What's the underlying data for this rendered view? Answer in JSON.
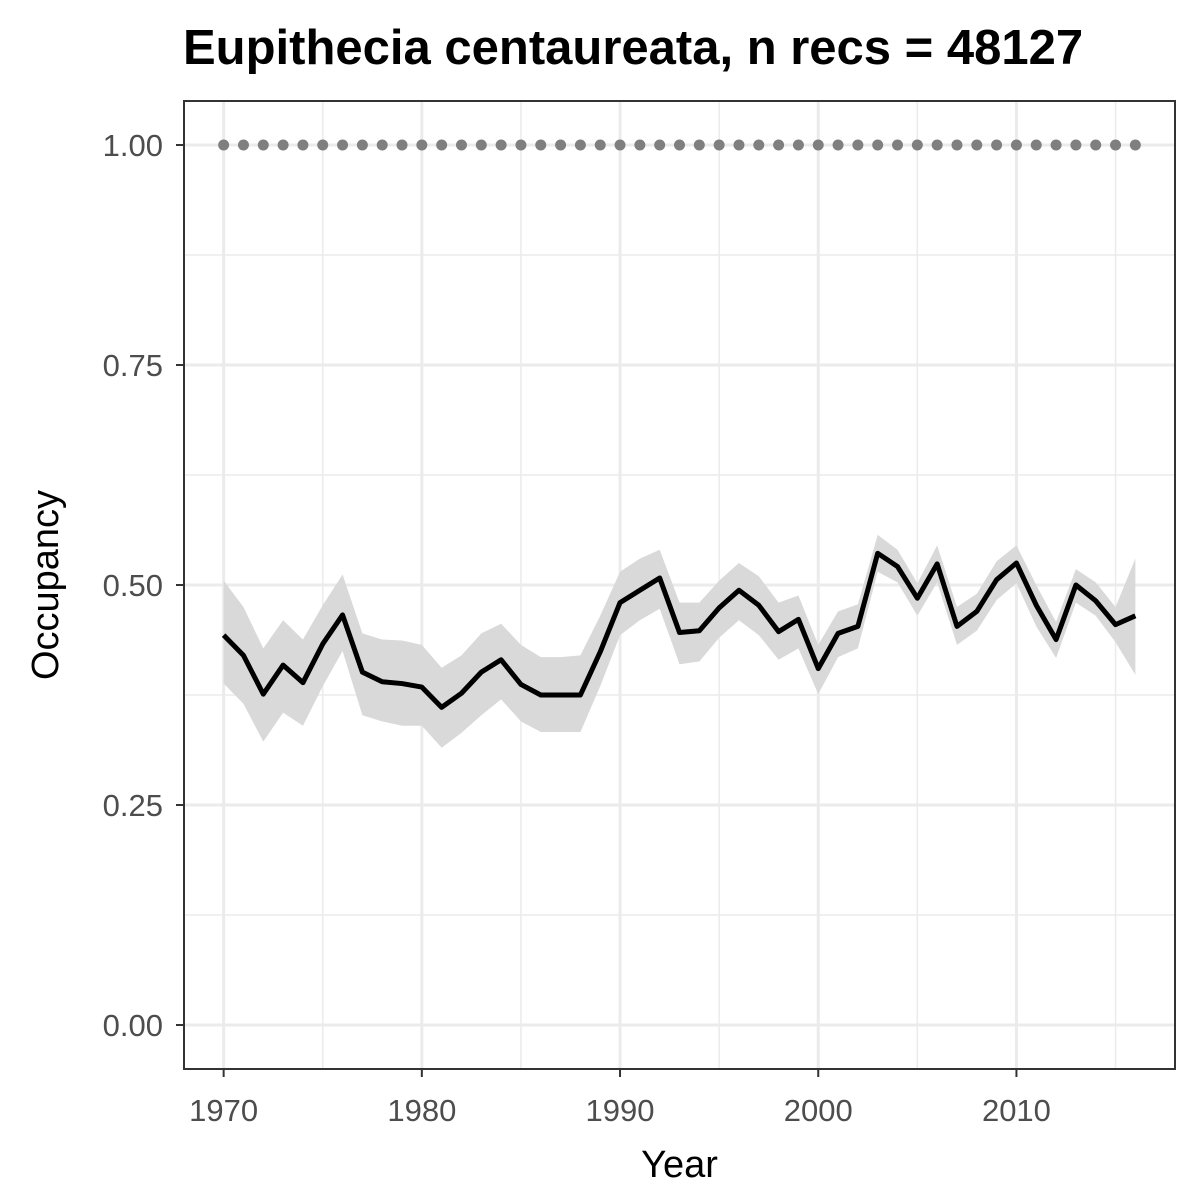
{
  "chart_data": {
    "type": "line",
    "title": "Eupithecia centaureata, n recs = 48127",
    "xlabel": "Year",
    "ylabel": "Occupancy",
    "xlim": [
      1968,
      2018
    ],
    "ylim": [
      -0.05,
      1.05
    ],
    "x_ticks": [
      1970,
      1980,
      1990,
      2000,
      2010
    ],
    "x_tick_labels": [
      "1970",
      "1980",
      "1990",
      "2000",
      "2010"
    ],
    "y_ticks": [
      0,
      0.25,
      0.5,
      0.75,
      1
    ],
    "y_tick_labels": [
      "0.00",
      "0.25",
      "0.50",
      "0.75",
      "1.00"
    ],
    "grid": true,
    "x": [
      1970,
      1971,
      1972,
      1973,
      1974,
      1975,
      1976,
      1977,
      1978,
      1979,
      1980,
      1981,
      1982,
      1983,
      1984,
      1985,
      1986,
      1987,
      1988,
      1989,
      1990,
      1991,
      1992,
      1993,
      1994,
      1995,
      1996,
      1997,
      1998,
      1999,
      2000,
      2001,
      2002,
      2003,
      2004,
      2005,
      2006,
      2007,
      2008,
      2009,
      2010,
      2011,
      2012,
      2013,
      2014,
      2015,
      2016
    ],
    "series": [
      {
        "style": "line",
        "color": "#000000",
        "values": [
          0.443,
          0.42,
          0.376,
          0.409,
          0.389,
          0.433,
          0.466,
          0.401,
          0.39,
          0.388,
          0.384,
          0.361,
          0.377,
          0.401,
          0.415,
          0.387,
          0.375,
          0.375,
          0.375,
          0.424,
          0.48,
          0.494,
          0.508,
          0.446,
          0.448,
          0.474,
          0.494,
          0.477,
          0.447,
          0.461,
          0.405,
          0.445,
          0.453,
          0.536,
          0.521,
          0.485,
          0.524,
          0.453,
          0.47,
          0.506,
          0.525,
          0.477,
          0.438,
          0.5,
          0.482,
          0.455,
          0.465
        ],
        "lower": [
          0.388,
          0.365,
          0.322,
          0.355,
          0.34,
          0.385,
          0.425,
          0.352,
          0.345,
          0.34,
          0.34,
          0.315,
          0.332,
          0.352,
          0.37,
          0.345,
          0.333,
          0.333,
          0.333,
          0.385,
          0.443,
          0.46,
          0.473,
          0.41,
          0.413,
          0.44,
          0.46,
          0.443,
          0.415,
          0.428,
          0.376,
          0.418,
          0.428,
          0.515,
          0.503,
          0.465,
          0.503,
          0.432,
          0.448,
          0.483,
          0.502,
          0.453,
          0.417,
          0.48,
          0.465,
          0.435,
          0.398
        ],
        "upper": [
          0.505,
          0.475,
          0.428,
          0.46,
          0.438,
          0.477,
          0.512,
          0.445,
          0.438,
          0.437,
          0.432,
          0.406,
          0.42,
          0.445,
          0.456,
          0.432,
          0.418,
          0.418,
          0.42,
          0.465,
          0.515,
          0.53,
          0.54,
          0.48,
          0.48,
          0.505,
          0.525,
          0.51,
          0.48,
          0.488,
          0.432,
          0.47,
          0.478,
          0.557,
          0.54,
          0.502,
          0.545,
          0.475,
          0.49,
          0.527,
          0.545,
          0.5,
          0.458,
          0.518,
          0.503,
          0.475,
          0.53
        ],
        "band_color": "#d9d9d9"
      },
      {
        "style": "dotted",
        "color": "#7f7f7f",
        "values": [
          1,
          1,
          1,
          1,
          1,
          1,
          1,
          1,
          1,
          1,
          1,
          1,
          1,
          1,
          1,
          1,
          1,
          1,
          1,
          1,
          1,
          1,
          1,
          1,
          1,
          1,
          1,
          1,
          1,
          1,
          1,
          1,
          1,
          1,
          1,
          1,
          1,
          1,
          1,
          1,
          1,
          1,
          1,
          1,
          1,
          1,
          1
        ]
      }
    ]
  }
}
